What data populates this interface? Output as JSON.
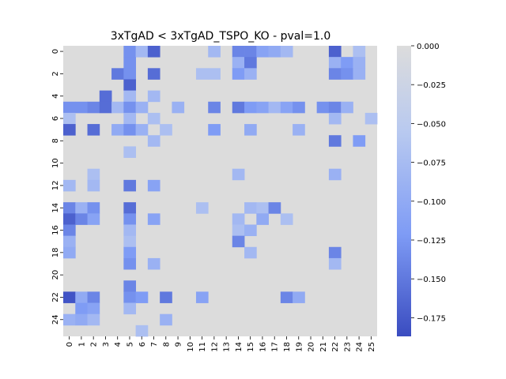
{
  "chart_data": {
    "type": "heatmap",
    "title": "3xTgAD < 3xTgAD_TSPO_KO - pval=1.0",
    "xlabel": "",
    "ylabel": "",
    "x_ticks": [
      "0",
      "1",
      "2",
      "3",
      "4",
      "5",
      "6",
      "7",
      "8",
      "9",
      "10",
      "11",
      "12",
      "13",
      "14",
      "15",
      "16",
      "17",
      "18",
      "19",
      "20",
      "21",
      "22",
      "23",
      "24",
      "25"
    ],
    "y_ticks": [
      "0",
      "2",
      "4",
      "6",
      "8",
      "10",
      "12",
      "14",
      "16",
      "18",
      "20",
      "22",
      "24"
    ],
    "n_rows": 26,
    "n_cols": 26,
    "vmin": -0.187,
    "vmax": 0.0,
    "colorbar_ticks": [
      "0.000",
      "−0.025",
      "−0.050",
      "−0.075",
      "−0.100",
      "−0.125",
      "−0.150",
      "−0.175"
    ],
    "colorbar_values": [
      0.0,
      -0.025,
      -0.05,
      -0.075,
      -0.1,
      -0.125,
      -0.15,
      -0.175
    ],
    "colormap": [
      "#3a4cc0",
      "#dcdcdc"
    ],
    "cells": [
      [
        0,
        5,
        -0.13
      ],
      [
        0,
        6,
        -0.08
      ],
      [
        0,
        7,
        -0.17
      ],
      [
        0,
        12,
        -0.08
      ],
      [
        0,
        14,
        -0.14
      ],
      [
        0,
        15,
        -0.14
      ],
      [
        0,
        16,
        -0.11
      ],
      [
        0,
        17,
        -0.1
      ],
      [
        0,
        18,
        -0.08
      ],
      [
        0,
        22,
        -0.17
      ],
      [
        0,
        24,
        -0.07
      ],
      [
        1,
        5,
        -0.13
      ],
      [
        1,
        14,
        -0.09
      ],
      [
        1,
        15,
        -0.15
      ],
      [
        1,
        22,
        -0.09
      ],
      [
        1,
        23,
        -0.12
      ],
      [
        1,
        24,
        -0.09
      ],
      [
        2,
        4,
        -0.15
      ],
      [
        2,
        5,
        -0.13
      ],
      [
        2,
        7,
        -0.16
      ],
      [
        2,
        11,
        -0.07
      ],
      [
        2,
        12,
        -0.07
      ],
      [
        2,
        14,
        -0.12
      ],
      [
        2,
        15,
        -0.09
      ],
      [
        2,
        22,
        -0.14
      ],
      [
        2,
        23,
        -0.13
      ],
      [
        2,
        24,
        -0.09
      ],
      [
        3,
        5,
        -0.17
      ],
      [
        4,
        3,
        -0.16
      ],
      [
        4,
        5,
        -0.08
      ],
      [
        4,
        7,
        -0.08
      ],
      [
        5,
        0,
        -0.13
      ],
      [
        5,
        1,
        -0.13
      ],
      [
        5,
        2,
        -0.14
      ],
      [
        5,
        3,
        -0.16
      ],
      [
        5,
        4,
        -0.08
      ],
      [
        5,
        5,
        -0.13
      ],
      [
        5,
        6,
        -0.09
      ],
      [
        5,
        9,
        -0.09
      ],
      [
        5,
        12,
        -0.14
      ],
      [
        5,
        14,
        -0.15
      ],
      [
        5,
        15,
        -0.12
      ],
      [
        5,
        16,
        -0.11
      ],
      [
        5,
        17,
        -0.08
      ],
      [
        5,
        18,
        -0.11
      ],
      [
        5,
        19,
        -0.13
      ],
      [
        5,
        21,
        -0.13
      ],
      [
        5,
        22,
        -0.14
      ],
      [
        5,
        23,
        -0.09
      ],
      [
        6,
        0,
        -0.07
      ],
      [
        6,
        5,
        -0.08
      ],
      [
        6,
        7,
        -0.07
      ],
      [
        6,
        22,
        -0.08
      ],
      [
        6,
        25,
        -0.07
      ],
      [
        7,
        0,
        -0.17
      ],
      [
        7,
        2,
        -0.16
      ],
      [
        7,
        4,
        -0.1
      ],
      [
        7,
        5,
        -0.13
      ],
      [
        7,
        6,
        -0.09
      ],
      [
        7,
        8,
        -0.07
      ],
      [
        7,
        12,
        -0.12
      ],
      [
        7,
        15,
        -0.1
      ],
      [
        7,
        19,
        -0.09
      ],
      [
        8,
        7,
        -0.08
      ],
      [
        8,
        22,
        -0.15
      ],
      [
        8,
        24,
        -0.12
      ],
      [
        9,
        5,
        -0.07
      ],
      [
        11,
        2,
        -0.07
      ],
      [
        11,
        14,
        -0.08
      ],
      [
        11,
        22,
        -0.09
      ],
      [
        12,
        0,
        -0.08
      ],
      [
        12,
        2,
        -0.08
      ],
      [
        12,
        5,
        -0.15
      ],
      [
        12,
        7,
        -0.11
      ],
      [
        14,
        0,
        -0.14
      ],
      [
        14,
        1,
        -0.09
      ],
      [
        14,
        2,
        -0.13
      ],
      [
        14,
        5,
        -0.16
      ],
      [
        14,
        11,
        -0.07
      ],
      [
        14,
        15,
        -0.08
      ],
      [
        14,
        16,
        -0.07
      ],
      [
        14,
        17,
        -0.14
      ],
      [
        15,
        0,
        -0.17
      ],
      [
        15,
        1,
        -0.14
      ],
      [
        15,
        2,
        -0.11
      ],
      [
        15,
        5,
        -0.13
      ],
      [
        15,
        7,
        -0.11
      ],
      [
        15,
        14,
        -0.08
      ],
      [
        15,
        16,
        -0.1
      ],
      [
        15,
        18,
        -0.07
      ],
      [
        16,
        0,
        -0.14
      ],
      [
        16,
        5,
        -0.08
      ],
      [
        16,
        14,
        -0.07
      ],
      [
        16,
        15,
        -0.09
      ],
      [
        17,
        0,
        -0.09
      ],
      [
        17,
        5,
        -0.07
      ],
      [
        17,
        14,
        -0.14
      ],
      [
        18,
        0,
        -0.1
      ],
      [
        18,
        5,
        -0.12
      ],
      [
        18,
        15,
        -0.08
      ],
      [
        18,
        22,
        -0.14
      ],
      [
        19,
        5,
        -0.13
      ],
      [
        19,
        7,
        -0.09
      ],
      [
        19,
        22,
        -0.08
      ],
      [
        21,
        5,
        -0.14
      ],
      [
        22,
        0,
        -0.18
      ],
      [
        22,
        1,
        -0.1
      ],
      [
        22,
        2,
        -0.14
      ],
      [
        22,
        5,
        -0.13
      ],
      [
        22,
        6,
        -0.12
      ],
      [
        22,
        8,
        -0.15
      ],
      [
        22,
        11,
        -0.11
      ],
      [
        22,
        18,
        -0.14
      ],
      [
        22,
        19,
        -0.1
      ],
      [
        23,
        1,
        -0.12
      ],
      [
        23,
        2,
        -0.11
      ],
      [
        23,
        5,
        -0.08
      ],
      [
        24,
        0,
        -0.09
      ],
      [
        24,
        1,
        -0.1
      ],
      [
        24,
        2,
        -0.08
      ],
      [
        24,
        8,
        -0.09
      ],
      [
        25,
        6,
        -0.07
      ]
    ]
  }
}
